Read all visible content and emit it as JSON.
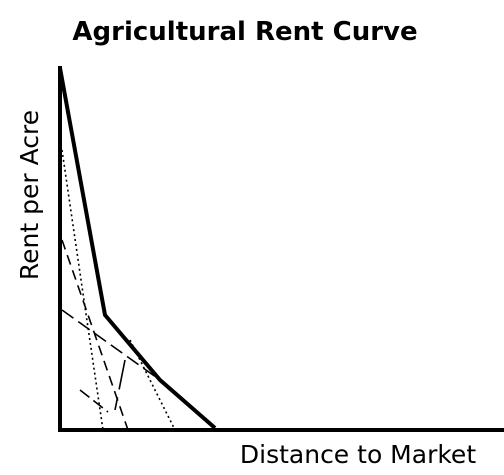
{
  "title": "Agricultural Rent Curve",
  "y_axis_label": "Rent per Acre",
  "x_axis_label": "Distance to Market"
}
